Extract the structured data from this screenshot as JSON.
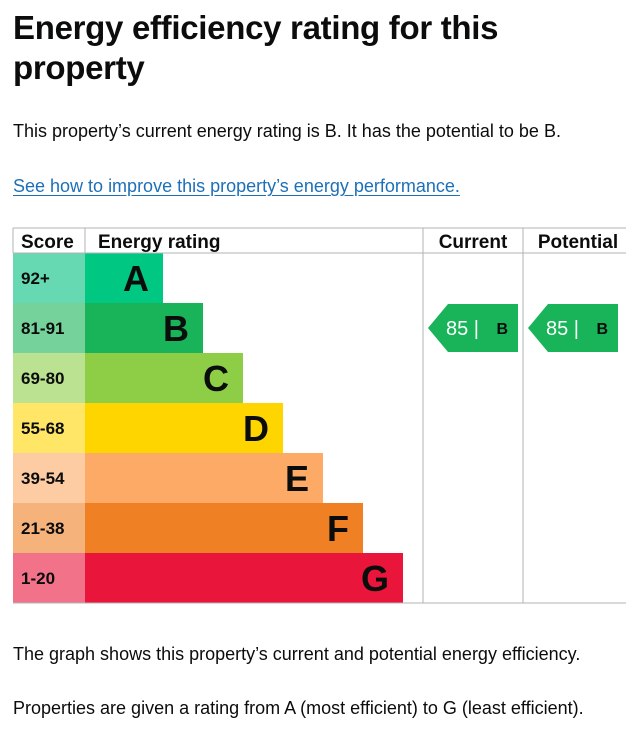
{
  "page": {
    "title": "Energy efficiency rating for this property",
    "intro": "This property’s current energy rating is B. It has the potential to be B.",
    "improve_link": "See how to improve this property’s energy performance.",
    "note_graph": "The graph shows this property’s current and potential energy efficiency.",
    "note_scale": "Properties are given a rating from A (most efficient) to G (least efficient)."
  },
  "chart": {
    "headers": {
      "score": "Score",
      "rating": "Energy rating",
      "current": "Current",
      "potential": "Potential"
    },
    "bands": [
      {
        "letter": "A",
        "score": "92+",
        "color": "#00c781",
        "score_bg": "#66d9b3"
      },
      {
        "letter": "B",
        "score": "81-91",
        "color": "#19b459",
        "score_bg": "#75d29b"
      },
      {
        "letter": "C",
        "score": "69-80",
        "color": "#8dce46",
        "score_bg": "#bbe290"
      },
      {
        "letter": "D",
        "score": "55-68",
        "color": "#ffd500",
        "score_bg": "#ffe666"
      },
      {
        "letter": "E",
        "score": "39-54",
        "color": "#fcaa65",
        "score_bg": "#fdcca3"
      },
      {
        "letter": "F",
        "score": "21-38",
        "color": "#ef8023",
        "score_bg": "#f5b37b"
      },
      {
        "letter": "G",
        "score": "1-20",
        "color": "#e9153b",
        "score_bg": "#f27389"
      }
    ],
    "current": {
      "value": "85 |",
      "letter": "B",
      "color": "#19b459"
    },
    "potential": {
      "value": "85 |",
      "letter": "B",
      "color": "#19b459"
    }
  }
}
